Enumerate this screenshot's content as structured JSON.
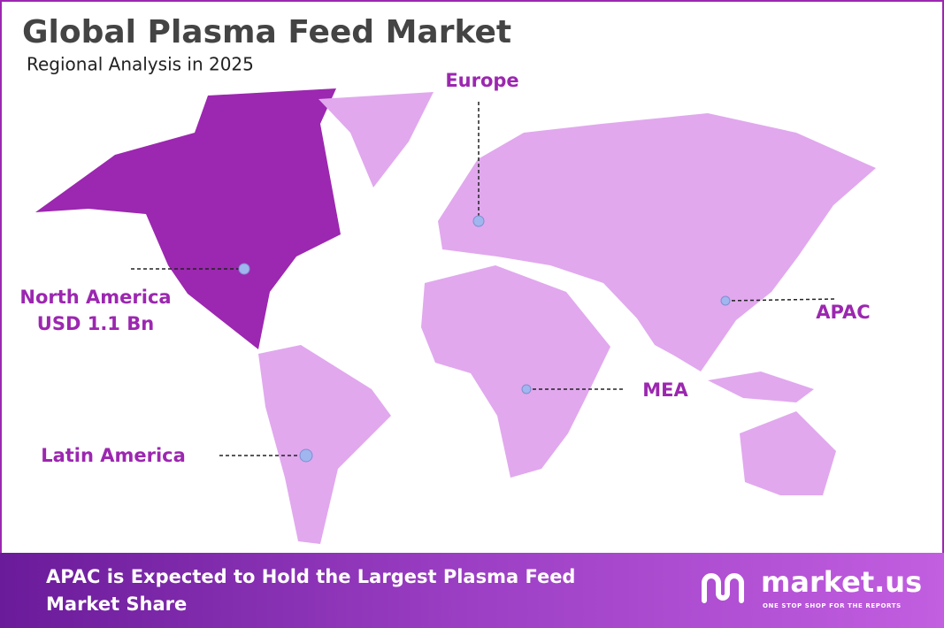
{
  "header": {
    "title": "Global Plasma Feed Market",
    "subtitle": "Regional Analysis in 2025"
  },
  "regions": [
    {
      "label": "North America",
      "value": "USD 1.1 Bn"
    },
    {
      "label": "Europe"
    },
    {
      "label": "APAC"
    },
    {
      "label": "MEA"
    },
    {
      "label": "Latin America"
    }
  ],
  "footer": {
    "text": "APAC is Expected to Hold the Largest Plasma Feed Market Share"
  },
  "logo": {
    "name": "market.us",
    "tagline": "ONE STOP SHOP FOR THE REPORTS"
  }
}
